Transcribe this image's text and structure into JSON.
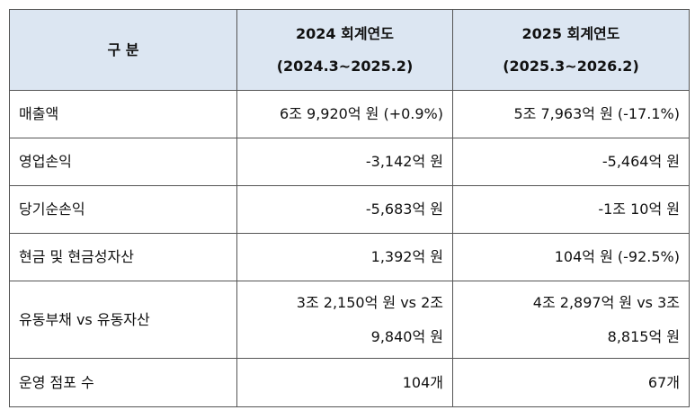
{
  "table": {
    "header": [
      [
        "구 분"
      ],
      [
        "2024 회계연도",
        "(2024.3~2025.2)"
      ],
      [
        "2025 회계연도",
        "(2025.3~2026.2)"
      ]
    ],
    "rows": [
      [
        [
          "매출액"
        ],
        [
          "6조 9,920억 원 (+0.9%)"
        ],
        [
          "5조 7,963억 원 (-17.1%)"
        ]
      ],
      [
        [
          "영업손익"
        ],
        [
          "-3,142억 원"
        ],
        [
          "-5,464억 원"
        ]
      ],
      [
        [
          "당기순손익"
        ],
        [
          "-5,683억 원"
        ],
        [
          "-1조 10억 원"
        ]
      ],
      [
        [
          "현금 및 현금성자산"
        ],
        [
          "1,392억 원"
        ],
        [
          "104억 원 (-92.5%)"
        ]
      ],
      [
        [
          "유동부채 vs 유동자산"
        ],
        [
          "3조 2,150억 원 vs 2조",
          "9,840억 원"
        ],
        [
          "4조 2,897억 원 vs 3조",
          "8,815억 원"
        ]
      ],
      [
        [
          "운영 점포 수"
        ],
        [
          "104개"
        ],
        [
          "67개"
        ]
      ]
    ]
  }
}
